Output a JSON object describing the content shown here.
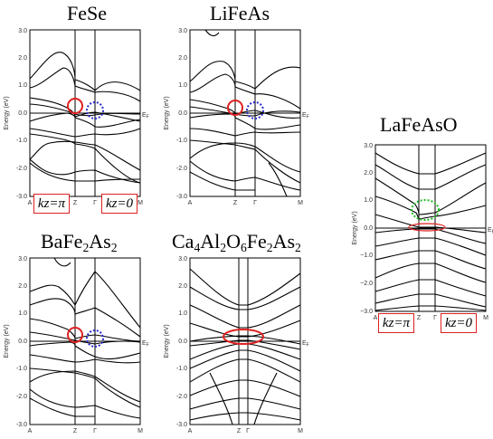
{
  "panels": [
    {
      "id": "fese",
      "title": "FeSe"
    },
    {
      "id": "lifeas",
      "title": "LiFeAs"
    },
    {
      "id": "bafe2as2",
      "title_parts": [
        "BaFe",
        "2",
        "As",
        "2"
      ]
    },
    {
      "id": "ca4",
      "title_parts": [
        "Ca",
        "4",
        "Al",
        "2",
        "O",
        "6",
        "Fe",
        "2",
        "As",
        "2"
      ]
    },
    {
      "id": "lafeaso",
      "title": "LaFeAsO"
    }
  ],
  "axis": {
    "ylabel": "Energy (eV)",
    "ef_label": "E",
    "ef_sub": "F",
    "ticks": [
      "3.0",
      "2.0",
      "1.0",
      "0.0",
      "-1.0",
      "-2.0",
      "-3.0"
    ],
    "ticks_nodot": [
      "3.0",
      "2.0",
      "1.0",
      "0.0",
      "−1.0",
      "−2.0",
      "−3.0"
    ],
    "klabels": [
      "A",
      "Z",
      "Γ",
      "M"
    ]
  },
  "kbox": {
    "pi": "kz=π",
    "zero": "kz=0"
  },
  "colors": {
    "red": "#e02020",
    "blue": "#2a2ad0",
    "green": "#22bb22",
    "line": "#000000"
  }
}
